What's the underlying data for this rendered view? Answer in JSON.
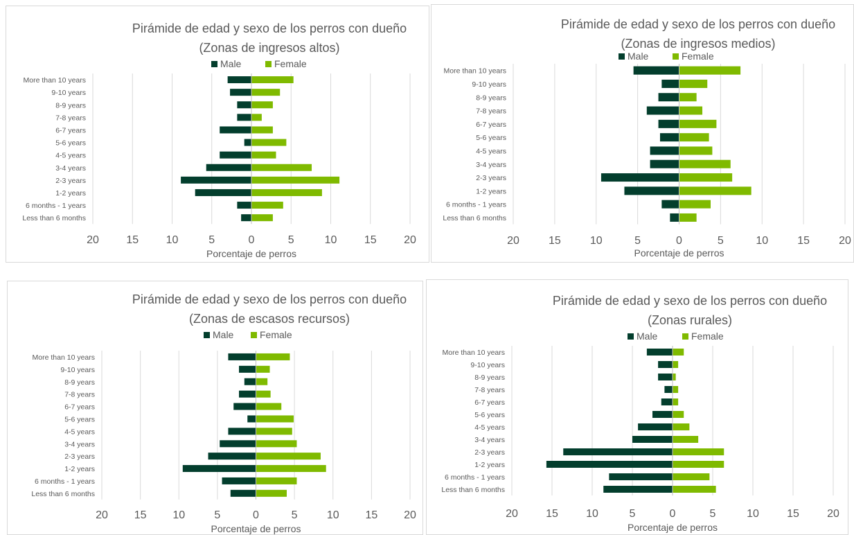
{
  "colors": {
    "male": "#033e2d",
    "female": "#7fba00",
    "grid": "#d9d9d9",
    "axis": "#bfbfbf",
    "text": "#595959"
  },
  "chart_data": [
    {
      "type": "bar",
      "orientation": "horizontal-diverging",
      "title": "Pirámide de edad y sexo de los perros con dueño",
      "subtitle": "(Zonas de ingresos altos)",
      "xlabel": "Porcentaje de perros",
      "legend": {
        "position": "top",
        "entries": [
          "Male",
          "Female"
        ]
      },
      "categories": [
        "More than 10 years",
        "9-10 years",
        "8-9 years",
        "7-8 years",
        "6-7 years",
        "5-6 years",
        "4-5 years",
        "3-4 years",
        "2-3 years",
        "1-2 years",
        "6 months - 1 years",
        "Less than 6 months"
      ],
      "x_ticks": [
        "20",
        "15",
        "10",
        "5",
        "0",
        "5",
        "10",
        "15",
        "20"
      ],
      "xlim": [
        -20,
        20
      ],
      "grid": true,
      "series": [
        {
          "name": "Male",
          "values": [
            3.0,
            2.7,
            1.8,
            1.8,
            4.0,
            0.9,
            4.0,
            5.7,
            8.9,
            7.1,
            1.8,
            1.3
          ]
        },
        {
          "name": "Female",
          "values": [
            5.3,
            3.6,
            2.7,
            1.3,
            2.7,
            4.4,
            3.1,
            7.6,
            11.1,
            8.9,
            4.0,
            2.7
          ]
        }
      ]
    },
    {
      "type": "bar",
      "orientation": "horizontal-diverging",
      "title": "Pirámide de edad y sexo de los perros con dueño",
      "subtitle": "(Zonas de ingresos medios)",
      "xlabel": "Porcentaje de perros",
      "legend": {
        "position": "top",
        "entries": [
          "Male",
          "Female"
        ]
      },
      "categories": [
        "More than 10 years",
        "9-10 years",
        "8-9 years",
        "7-8 years",
        "6-7 years",
        "5-6 years",
        "4-5 years",
        "3-4 years",
        "2-3 years",
        "1-2 years",
        "6 months - 1 years",
        "Less than 6 months"
      ],
      "x_ticks": [
        "20",
        "15",
        "10",
        "5",
        "0",
        "5",
        "10",
        "15",
        "20"
      ],
      "xlim": [
        -20,
        20
      ],
      "grid": true,
      "series": [
        {
          "name": "Male",
          "values": [
            5.5,
            2.1,
            2.5,
            3.9,
            2.5,
            2.3,
            3.5,
            3.5,
            9.4,
            6.6,
            2.1,
            1.1
          ]
        },
        {
          "name": "Female",
          "values": [
            7.4,
            3.4,
            2.1,
            2.8,
            4.5,
            3.6,
            4.0,
            6.2,
            6.4,
            8.7,
            3.8,
            2.1
          ]
        }
      ]
    },
    {
      "type": "bar",
      "orientation": "horizontal-diverging",
      "title": "Pirámide de edad y sexo de los perros con dueño",
      "subtitle": "(Zonas de escasos recursos)",
      "xlabel": "Porcentaje de perros",
      "legend": {
        "position": "top",
        "entries": [
          "Male",
          "Female"
        ]
      },
      "categories": [
        "More than 10 years",
        "9-10 years",
        "8-9 years",
        "7-8 years",
        "6-7 years",
        "5-6 years",
        "4-5 years",
        "3-4 years",
        "2-3 years",
        "1-2 years",
        "6 months - 1 years",
        "Less than 6 months"
      ],
      "x_ticks": [
        "20",
        "15",
        "10",
        "5",
        "0",
        "5",
        "10",
        "15",
        "20"
      ],
      "xlim": [
        -20,
        20
      ],
      "grid": true,
      "series": [
        {
          "name": "Male",
          "values": [
            3.6,
            2.2,
            1.5,
            2.2,
            2.9,
            1.1,
            3.6,
            4.7,
            6.2,
            9.5,
            4.4,
            3.3
          ]
        },
        {
          "name": "Female",
          "values": [
            4.4,
            1.8,
            1.5,
            1.9,
            3.3,
            4.9,
            4.7,
            5.3,
            8.4,
            9.1,
            5.3,
            4.0
          ]
        }
      ]
    },
    {
      "type": "bar",
      "orientation": "horizontal-diverging",
      "title": "Pirámide de edad y sexo de los perros con dueño",
      "subtitle": "(Zonas rurales)",
      "xlabel": "Porcentaje de perros",
      "legend": {
        "position": "top",
        "entries": [
          "Male",
          "Female"
        ]
      },
      "categories": [
        "More than 10 years",
        "9-10 years",
        "8-9 years",
        "7-8 years",
        "6-7 years",
        "5-6 years",
        "4-5 years",
        "3-4 years",
        "2-3 years",
        "1-2 years",
        "6 months - 1 years",
        "Less than 6 months"
      ],
      "x_ticks": [
        "20",
        "15",
        "10",
        "5",
        "0",
        "5",
        "10",
        "15",
        "20"
      ],
      "xlim": [
        -20,
        20
      ],
      "grid": true,
      "series": [
        {
          "name": "Male",
          "values": [
            3.2,
            1.8,
            1.8,
            1.0,
            1.4,
            2.5,
            4.3,
            5.0,
            13.6,
            15.7,
            7.9,
            8.6
          ]
        },
        {
          "name": "Female",
          "values": [
            1.4,
            0.7,
            0.4,
            0.7,
            0.7,
            1.4,
            2.1,
            3.2,
            6.4,
            6.4,
            4.6,
            5.4
          ]
        }
      ]
    }
  ]
}
